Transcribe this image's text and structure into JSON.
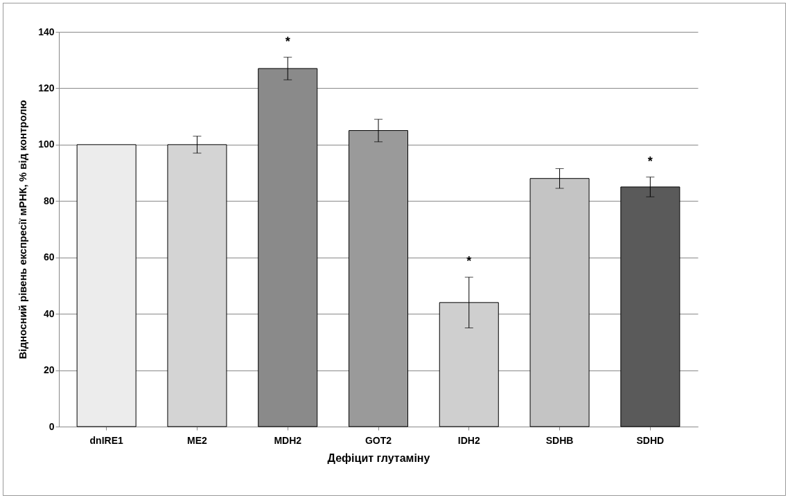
{
  "chart_data": {
    "type": "bar",
    "xlabel": "Дефіцит глутаміну",
    "ylabel": "Відносний  рівень експресії мРНК, % від контролю",
    "categories": [
      "dnIRE1",
      "ME2",
      "MDH2",
      "GOT2",
      "IDH2",
      "SDHB",
      "SDHD"
    ],
    "values": [
      100,
      100,
      127,
      105,
      44,
      88,
      85
    ],
    "colors": [
      "#ececec",
      "#d4d4d4",
      "#8a8a8a",
      "#9a9a9a",
      "#cfcfcf",
      "#c4c4c4",
      "#5a5a5a"
    ],
    "errors": [
      null,
      3,
      4,
      4,
      9,
      3.5,
      3.5
    ],
    "ylim": [
      0,
      140
    ],
    "yticks": [
      0,
      20,
      40,
      60,
      80,
      100,
      120,
      140
    ],
    "grid": "y",
    "annotations": [
      {
        "text": "*",
        "x": "MDH2",
        "y": 127
      },
      {
        "text": "*",
        "x": "IDH2",
        "y": 44
      },
      {
        "text": "*",
        "x": "SDHD",
        "y": 85
      }
    ]
  }
}
